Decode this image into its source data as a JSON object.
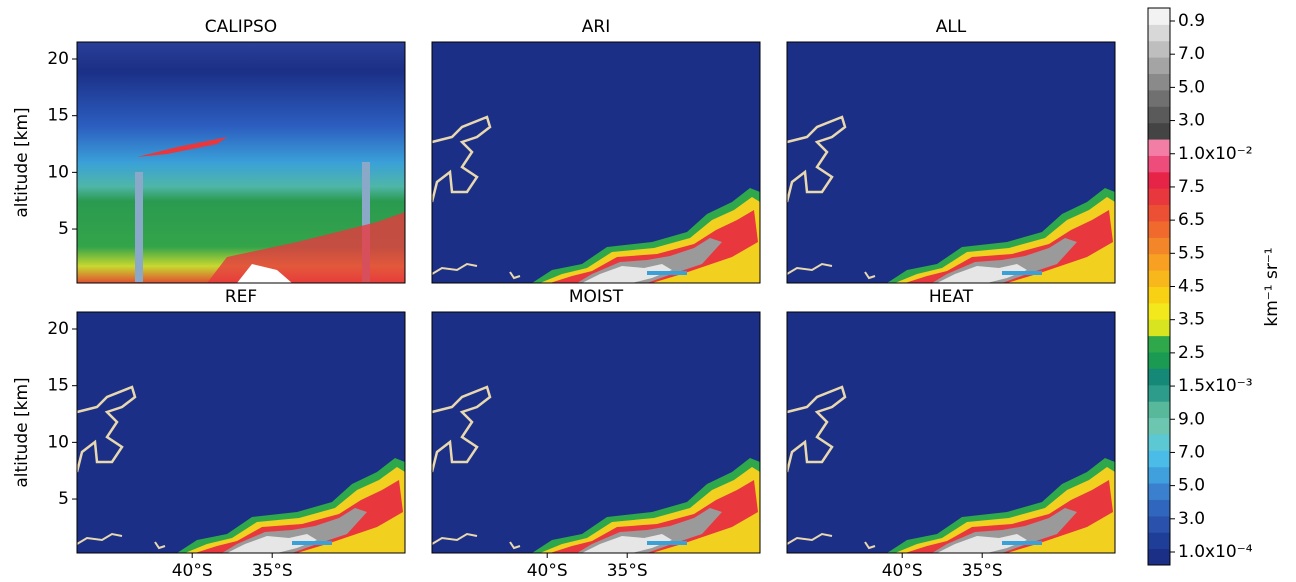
{
  "chart_data": [
    {
      "type": "heatmap",
      "title": "CALIPSO",
      "ylabel": "altitude [km]",
      "xlim": [
        -47.2,
        -26.7
      ],
      "ylim": [
        0.24,
        21.5
      ],
      "yticks": [
        5,
        10,
        15,
        20
      ]
    },
    {
      "type": "heatmap",
      "title": "ARI",
      "xlim": [
        -47.2,
        -26.7
      ],
      "ylim": [
        0.24,
        21.5
      ]
    },
    {
      "type": "heatmap",
      "title": "ALL",
      "xlim": [
        -47.2,
        -26.7
      ],
      "ylim": [
        0.24,
        21.5
      ]
    },
    {
      "type": "heatmap",
      "title": "REF",
      "ylabel": "altitude [km]",
      "xlim": [
        -47.2,
        -26.7
      ],
      "ylim": [
        0.24,
        21.5
      ],
      "yticks": [
        5,
        10,
        15,
        20
      ],
      "xticks": [
        {
          "value": -40,
          "label": "40°S"
        },
        {
          "value": -35,
          "label": "35°S"
        }
      ]
    },
    {
      "type": "heatmap",
      "title": "MOIST",
      "xlim": [
        -47.2,
        -26.7
      ],
      "ylim": [
        0.24,
        21.5
      ],
      "xticks": [
        {
          "value": -40,
          "label": "40°S"
        },
        {
          "value": -35,
          "label": "35°S"
        }
      ]
    },
    {
      "type": "heatmap",
      "title": "HEAT",
      "xlim": [
        -47.2,
        -26.7
      ],
      "ylim": [
        0.24,
        21.5
      ],
      "xticks": [
        {
          "value": -40,
          "label": "40°S"
        },
        {
          "value": -35,
          "label": "35°S"
        }
      ]
    }
  ],
  "colorbar": {
    "label": "km⁻¹ sr⁻¹",
    "tick_labels": [
      "1.0x10⁻⁴",
      "3.0",
      "5.0",
      "7.0",
      "9.0",
      "1.5x10⁻³",
      "2.5",
      "3.5",
      "4.5",
      "5.5",
      "6.5",
      "7.5",
      "1.0x10⁻²",
      "3.0",
      "5.0",
      "7.0",
      "0.9"
    ],
    "colors": [
      "#1b2f86",
      "#1f3e98",
      "#2a52ad",
      "#3066be",
      "#3a80cf",
      "#3fa0dd",
      "#4bbce8",
      "#5cc8d4",
      "#6cc6b0",
      "#58b89a",
      "#2e9c8a",
      "#168878",
      "#1a9a52",
      "#2ea84a",
      "#d8e420",
      "#f2e81c",
      "#f8d014",
      "#f8b81c",
      "#f8a022",
      "#f28628",
      "#f06a2e",
      "#ec5034",
      "#e8383e",
      "#e62448",
      "#ee4c7a",
      "#f27ea6",
      "#444444",
      "#5a5a5a",
      "#707070",
      "#8a8a8a",
      "#a4a4a4",
      "#bebebe",
      "#d8d8d8",
      "#f2f2f2"
    ]
  }
}
